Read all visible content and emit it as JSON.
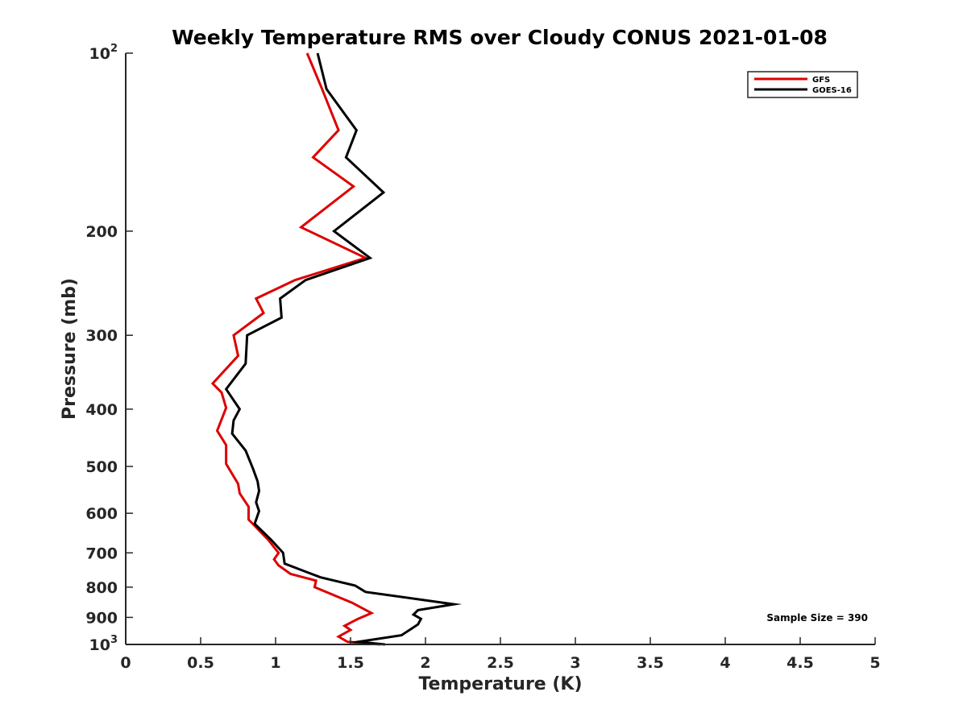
{
  "chart_data": {
    "type": "line",
    "title": "Weekly Temperature RMS over Cloudy CONUS 2021-01-08",
    "xlabel": "Temperature (K)",
    "ylabel": "Pressure (mb)",
    "xlim": [
      0,
      5
    ],
    "ylim": [
      100,
      1000
    ],
    "y_scale": "log",
    "y_reversed": true,
    "x_ticks": [
      0,
      0.5,
      1,
      1.5,
      2,
      2.5,
      3,
      3.5,
      4,
      4.5,
      5
    ],
    "x_tick_labels": [
      "0",
      "0.5",
      "1",
      "1.5",
      "2",
      "2.5",
      "3",
      "3.5",
      "4",
      "4.5",
      "5"
    ],
    "y_ticks": [
      {
        "value": 100,
        "base": "10",
        "exp": "2"
      },
      {
        "value": 200,
        "base": "200",
        "exp": ""
      },
      {
        "value": 300,
        "base": "300",
        "exp": ""
      },
      {
        "value": 400,
        "base": "400",
        "exp": ""
      },
      {
        "value": 500,
        "base": "500",
        "exp": ""
      },
      {
        "value": 600,
        "base": "600",
        "exp": ""
      },
      {
        "value": 700,
        "base": "700",
        "exp": ""
      },
      {
        "value": 800,
        "base": "800",
        "exp": ""
      },
      {
        "value": 900,
        "base": "900",
        "exp": ""
      },
      {
        "value": 1000,
        "base": "10",
        "exp": "3"
      }
    ],
    "grid": false,
    "legend_position": "top-right",
    "annotation": "Sample Size = 390",
    "series": [
      {
        "name": "GFS",
        "color": "#dd0000",
        "points": [
          [
            1.21,
            100
          ],
          [
            1.31,
            115
          ],
          [
            1.42,
            135
          ],
          [
            1.25,
            150
          ],
          [
            1.52,
            168
          ],
          [
            1.17,
            197
          ],
          [
            1.6,
            222
          ],
          [
            1.13,
            242
          ],
          [
            0.87,
            260
          ],
          [
            0.92,
            275
          ],
          [
            0.72,
            300
          ],
          [
            0.75,
            325
          ],
          [
            0.58,
            362
          ],
          [
            0.64,
            375
          ],
          [
            0.67,
            398
          ],
          [
            0.61,
            435
          ],
          [
            0.67,
            460
          ],
          [
            0.67,
            495
          ],
          [
            0.75,
            535
          ],
          [
            0.76,
            555
          ],
          [
            0.82,
            585
          ],
          [
            0.82,
            615
          ],
          [
            0.95,
            665
          ],
          [
            1.02,
            700
          ],
          [
            0.99,
            718
          ],
          [
            1.02,
            735
          ],
          [
            1.1,
            760
          ],
          [
            1.27,
            780
          ],
          [
            1.26,
            800
          ],
          [
            1.51,
            850
          ],
          [
            1.64,
            885
          ],
          [
            1.55,
            905
          ],
          [
            1.46,
            930
          ],
          [
            1.5,
            945
          ],
          [
            1.42,
            970
          ],
          [
            1.48,
            990
          ],
          [
            1.7,
            1000
          ]
        ]
      },
      {
        "name": "GOES-16",
        "color": "#000000",
        "points": [
          [
            1.28,
            100
          ],
          [
            1.34,
            115
          ],
          [
            1.54,
            135
          ],
          [
            1.47,
            150
          ],
          [
            1.72,
            172
          ],
          [
            1.39,
            200
          ],
          [
            1.63,
            222
          ],
          [
            1.2,
            242
          ],
          [
            1.03,
            260
          ],
          [
            1.04,
            280
          ],
          [
            0.81,
            300
          ],
          [
            0.8,
            335
          ],
          [
            0.67,
            370
          ],
          [
            0.76,
            400
          ],
          [
            0.72,
            418
          ],
          [
            0.71,
            440
          ],
          [
            0.8,
            470
          ],
          [
            0.85,
            505
          ],
          [
            0.88,
            530
          ],
          [
            0.89,
            550
          ],
          [
            0.87,
            575
          ],
          [
            0.89,
            595
          ],
          [
            0.86,
            625
          ],
          [
            0.97,
            665
          ],
          [
            1.05,
            700
          ],
          [
            1.06,
            730
          ],
          [
            1.3,
            770
          ],
          [
            1.53,
            795
          ],
          [
            1.6,
            815
          ],
          [
            2.19,
            855
          ],
          [
            1.95,
            875
          ],
          [
            1.92,
            890
          ],
          [
            1.97,
            905
          ],
          [
            1.95,
            925
          ],
          [
            1.84,
            965
          ],
          [
            1.55,
            990
          ],
          [
            1.73,
            1000
          ]
        ]
      }
    ]
  }
}
